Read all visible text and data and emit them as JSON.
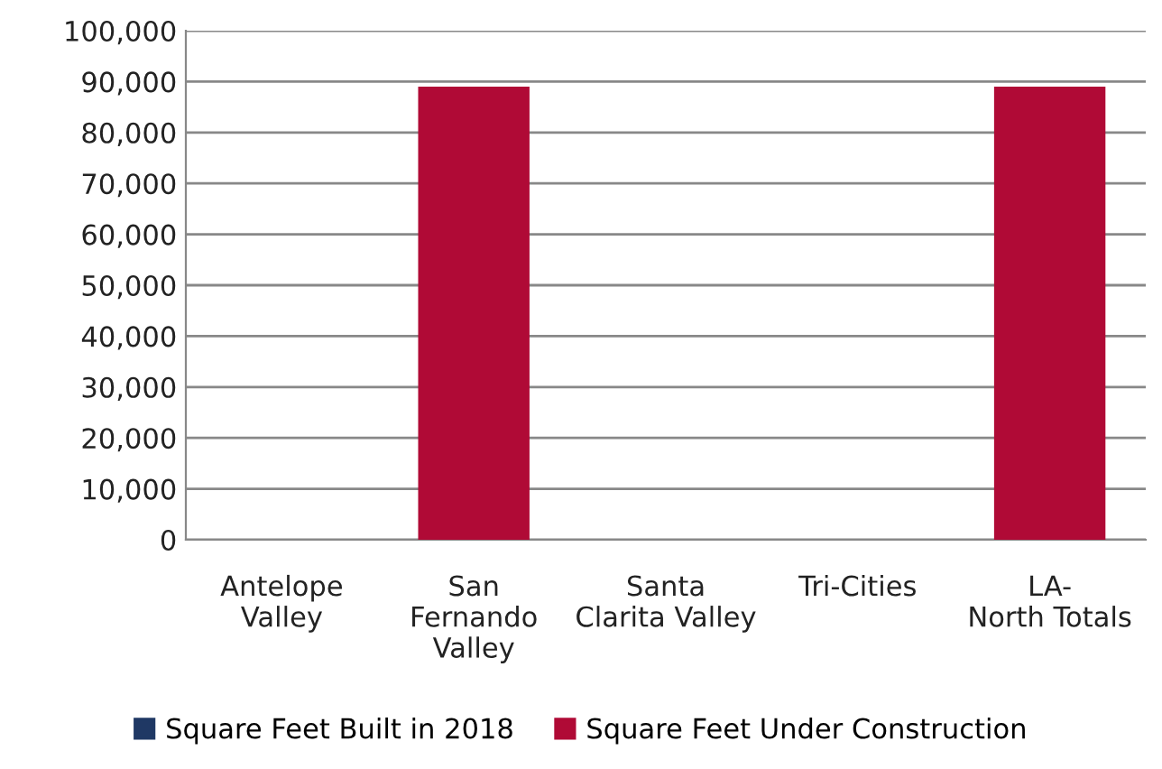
{
  "chart_data": {
    "type": "bar",
    "categories": [
      "Antelope Valley",
      "San Fernando Valley",
      "Santa Clarita Valley",
      "Tri-Cities",
      "LA- North Totals"
    ],
    "series": [
      {
        "name": "Square Feet Built in 2018",
        "color": "#1f3864",
        "values": [
          0,
          0,
          0,
          0,
          0
        ]
      },
      {
        "name": "Square Feet Under Construction",
        "color": "#b00a36",
        "values": [
          0,
          89000,
          0,
          0,
          89000
        ]
      }
    ],
    "ylim": [
      0,
      100000
    ],
    "yticks": [
      {
        "value": 0,
        "label": "0"
      },
      {
        "value": 10000,
        "label": "10,000"
      },
      {
        "value": 20000,
        "label": "20,000"
      },
      {
        "value": 30000,
        "label": "30,000"
      },
      {
        "value": 40000,
        "label": "40,000"
      },
      {
        "value": 50000,
        "label": "50,000"
      },
      {
        "value": 60000,
        "label": "60,000"
      },
      {
        "value": 70000,
        "label": "70,000"
      },
      {
        "value": 80000,
        "label": "80,000"
      },
      {
        "value": 90000,
        "label": "90,000"
      },
      {
        "value": 100000,
        "label": "100,000"
      }
    ],
    "grid": "y",
    "legend": "bottom"
  }
}
